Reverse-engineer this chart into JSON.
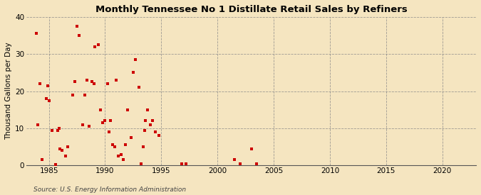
{
  "title": "Monthly Tennessee No 1 Distillate Retail Sales by Refiners",
  "ylabel": "Thousand Gallons per Day",
  "source": "Source: U.S. Energy Information Administration",
  "background_color": "#f5e5c0",
  "plot_background_color": "#f5e5c0",
  "marker_color": "#cc0000",
  "xlim": [
    1983.0,
    2023.0
  ],
  "ylim": [
    0,
    40
  ],
  "xticks": [
    1985,
    1990,
    1995,
    2000,
    2005,
    2010,
    2015,
    2020
  ],
  "yticks": [
    0,
    10,
    20,
    30,
    40
  ],
  "data_x": [
    1983.9,
    1984.0,
    1984.2,
    1984.4,
    1984.8,
    1984.9,
    1985.0,
    1985.3,
    1985.6,
    1985.8,
    1985.9,
    1986.0,
    1986.2,
    1986.5,
    1986.7,
    1987.1,
    1987.3,
    1987.5,
    1987.7,
    1988.0,
    1988.2,
    1988.4,
    1988.6,
    1988.8,
    1989.0,
    1989.1,
    1989.4,
    1989.6,
    1989.8,
    1990.0,
    1990.2,
    1990.35,
    1990.5,
    1990.7,
    1990.85,
    1991.0,
    1991.2,
    1991.4,
    1991.6,
    1991.8,
    1992.0,
    1992.3,
    1992.5,
    1992.7,
    1993.0,
    1993.2,
    1993.4,
    1993.5,
    1993.6,
    1993.8,
    1994.0,
    1994.2,
    1994.5,
    1994.8,
    1996.8,
    1997.2,
    2001.5,
    2002.0,
    2003.0,
    2003.5
  ],
  "data_y": [
    35.5,
    11.0,
    22.0,
    1.5,
    18.0,
    21.5,
    17.5,
    9.5,
    0.3,
    9.5,
    10.0,
    4.5,
    4.0,
    2.5,
    5.0,
    19.0,
    22.5,
    37.5,
    35.0,
    11.0,
    19.0,
    23.0,
    10.5,
    22.5,
    22.0,
    32.0,
    32.5,
    15.0,
    11.5,
    12.0,
    22.0,
    9.0,
    12.0,
    5.5,
    5.0,
    23.0,
    2.5,
    3.0,
    1.5,
    5.5,
    15.0,
    7.5,
    25.0,
    28.5,
    21.0,
    0.5,
    5.0,
    9.5,
    12.0,
    15.0,
    11.0,
    12.0,
    9.0,
    8.0,
    0.5,
    0.5,
    1.5,
    0.5,
    4.5,
    0.5
  ]
}
